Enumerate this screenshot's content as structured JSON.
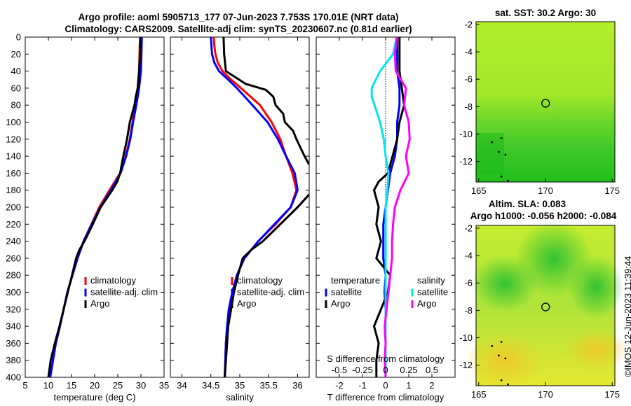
{
  "header": {
    "title_line1": "Argo profile: aoml 5905713_177 07-Jun-2023 7.753S 170.01E (NRT data)",
    "title_line2": "Climatology: CARS2009. Satellite-adj clim: synTS_20230607.nc (0.81d earlier)"
  },
  "colors": {
    "climatology": "#ff0000",
    "satellite": "#0000ff",
    "argo": "#000000",
    "cyan": "#00e5ee",
    "magenta": "#ff00ff"
  },
  "chart_data": [
    {
      "type": "line",
      "id": "temperature-profile",
      "xlabel": "temperature (deg C)",
      "ylabel": "",
      "xlim": [
        5,
        35
      ],
      "ylim": [
        400,
        0
      ],
      "xticks": [
        5,
        10,
        15,
        20,
        25,
        30,
        35
      ],
      "yticks": [
        0,
        20,
        40,
        60,
        80,
        100,
        120,
        140,
        160,
        180,
        200,
        220,
        240,
        260,
        280,
        300,
        320,
        340,
        360,
        380,
        400
      ],
      "legend": [
        "climatology",
        "satellite-adj. clim",
        "Argo"
      ],
      "series": [
        {
          "name": "climatology",
          "color": "#ff0000",
          "depth": [
            0,
            20,
            40,
            60,
            80,
            100,
            120,
            140,
            160,
            180,
            200,
            220,
            240,
            260,
            280,
            300,
            320,
            340,
            360,
            380,
            400
          ],
          "values": [
            29.8,
            29.7,
            29.6,
            29.3,
            28.8,
            28.2,
            27.6,
            26.7,
            25.5,
            23.2,
            21.0,
            19.3,
            17.6,
            16.3,
            15.2,
            14.1,
            13.3,
            12.5,
            11.6,
            11.0,
            10.4
          ]
        },
        {
          "name": "satellite-adj. clim",
          "color": "#0000ff",
          "depth": [
            0,
            20,
            40,
            60,
            80,
            100,
            120,
            140,
            160,
            180,
            200,
            220,
            240,
            260,
            280,
            300,
            320,
            340,
            360,
            380,
            400
          ],
          "values": [
            30.2,
            30.1,
            30.0,
            29.6,
            29.0,
            28.3,
            27.7,
            26.8,
            25.6,
            23.5,
            21.2,
            19.4,
            17.6,
            16.3,
            15.2,
            14.1,
            13.3,
            12.5,
            11.6,
            11.0,
            10.4
          ]
        },
        {
          "name": "Argo",
          "color": "#000000",
          "depth": [
            0,
            20,
            40,
            60,
            70,
            80,
            100,
            120,
            140,
            160,
            170,
            180,
            200,
            220,
            240,
            250,
            260,
            280,
            300,
            320,
            340,
            360,
            380,
            400
          ],
          "values": [
            29.9,
            29.8,
            29.6,
            29.3,
            28.9,
            28.6,
            27.6,
            27.0,
            26.2,
            25.5,
            24.9,
            23.8,
            21.3,
            19.6,
            17.8,
            16.7,
            16.0,
            15.1,
            14.2,
            13.3,
            12.4,
            11.4,
            10.5,
            10.0
          ]
        }
      ]
    },
    {
      "type": "line",
      "id": "salinity-profile",
      "xlabel": "salinity",
      "xlim": [
        33.8,
        36.2
      ],
      "ylim": [
        400,
        0
      ],
      "xticks": [
        34,
        34.5,
        35,
        35.5,
        36
      ],
      "legend": [
        "climatology",
        "satellite-adj. clim",
        "Argo"
      ],
      "series": [
        {
          "name": "climatology",
          "color": "#ff0000",
          "depth": [
            0,
            10,
            20,
            30,
            40,
            50,
            60,
            80,
            100,
            120,
            140,
            160,
            180,
            200,
            220,
            240,
            260,
            280,
            300,
            320,
            340,
            360,
            380,
            400
          ],
          "values": [
            34.55,
            34.56,
            34.58,
            34.62,
            34.7,
            34.85,
            35.02,
            35.35,
            35.55,
            35.7,
            35.8,
            35.91,
            35.98,
            35.88,
            35.62,
            35.32,
            35.08,
            34.95,
            34.88,
            34.82,
            34.78,
            34.76,
            34.75,
            34.74
          ]
        },
        {
          "name": "satellite-adj. clim",
          "color": "#0000ff",
          "depth": [
            0,
            20,
            30,
            40,
            50,
            60,
            80,
            100,
            120,
            140,
            160,
            180,
            200,
            220,
            240,
            260,
            280,
            300,
            320,
            340,
            360,
            380,
            400
          ],
          "values": [
            34.5,
            34.52,
            34.56,
            34.64,
            34.8,
            34.95,
            35.22,
            35.48,
            35.66,
            35.8,
            35.95,
            36.0,
            35.88,
            35.6,
            35.32,
            35.08,
            34.95,
            34.87,
            34.81,
            34.78,
            34.76,
            34.75,
            34.74
          ]
        },
        {
          "name": "Argo",
          "color": "#000000",
          "depth": [
            0,
            20,
            40,
            55,
            62,
            70,
            80,
            90,
            100,
            110,
            120,
            130,
            140,
            150
          ],
          "values": [
            34.72,
            34.73,
            34.76,
            35.1,
            35.45,
            35.58,
            35.62,
            35.75,
            35.78,
            35.92,
            35.98,
            36.05,
            36.12,
            36.2
          ]
        },
        {
          "name": "Argo-deep",
          "color": "#000000",
          "depth": [
            185,
            200,
            220,
            240,
            250,
            260,
            280,
            300,
            320,
            340,
            360,
            380,
            400
          ],
          "values": [
            36.2,
            36.0,
            35.7,
            35.4,
            35.2,
            35.05,
            34.97,
            34.9,
            34.85,
            34.8,
            34.78,
            34.76,
            34.74
          ]
        }
      ]
    },
    {
      "type": "line",
      "id": "difference-profile",
      "xlabel": "T difference from climatology",
      "top_xlabel": "S difference from climatology",
      "xlim": [
        -3,
        3
      ],
      "ylim": [
        400,
        0
      ],
      "xticks": [
        -2,
        -1,
        0,
        1,
        2
      ],
      "sticks": [
        "-0.5",
        "-0.25",
        "0",
        "0.25",
        "0.5"
      ],
      "legend_temperature": [
        "temperature",
        "satellite",
        "Argo"
      ],
      "legend_salinity": [
        "salinity",
        "satellite",
        "Argo"
      ],
      "series": [
        {
          "name": "temperature satellite",
          "color": "#0000ff",
          "depth": [
            0,
            20,
            40,
            60,
            80,
            100,
            120,
            140,
            160,
            180,
            200,
            220,
            240,
            260,
            280,
            300,
            320,
            340,
            360,
            380,
            400
          ],
          "values": [
            0.5,
            0.5,
            0.5,
            0.6,
            0.6,
            0.5,
            0.5,
            0.4,
            0.2,
            0.1,
            0.0,
            -0.1,
            -0.1,
            -0.1,
            0,
            -0.05,
            0,
            0,
            0,
            0,
            0
          ]
        },
        {
          "name": "temperature Argo",
          "color": "#000000",
          "depth": [
            0,
            20,
            40,
            60,
            80,
            100,
            120,
            140,
            160,
            170,
            180,
            200,
            220,
            240,
            260,
            280,
            300,
            320,
            340,
            360,
            380,
            400
          ],
          "values": [
            0.6,
            0.6,
            0.6,
            0.7,
            0.8,
            0.6,
            0.5,
            0.3,
            0.1,
            -0.3,
            -0.5,
            -0.3,
            -0.4,
            -0.2,
            -0.4,
            0.2,
            0.1,
            -0.2,
            -0.5,
            -0.3,
            -0.4,
            -0.4
          ]
        },
        {
          "name": "salinity satellite",
          "color": "#00e5ee",
          "depth": [
            0,
            20,
            40,
            60,
            70,
            80,
            100,
            120,
            140,
            160,
            180,
            200,
            220,
            240,
            260,
            280,
            300,
            320,
            340,
            360,
            380,
            400
          ],
          "values": [
            0.12,
            0.08,
            -0.06,
            -0.15,
            -0.15,
            -0.12,
            -0.06,
            -0.02,
            0.0,
            0.03,
            0.02,
            0.0,
            0.0,
            0.0,
            0.0,
            0.0,
            0.0,
            0.0,
            0.0,
            0.0,
            0.0,
            0.0
          ]
        },
        {
          "name": "salinity Argo",
          "color": "#ff00ff",
          "depth": [
            0,
            20,
            40,
            60,
            80,
            100,
            120,
            140,
            160,
            180,
            200,
            220,
            240,
            260,
            280,
            300,
            320,
            340,
            360,
            380,
            400
          ],
          "values": [
            0.12,
            0.1,
            0.11,
            0.22,
            0.2,
            0.25,
            0.26,
            0.22,
            0.25,
            0.16,
            0.1,
            0.08,
            0.07,
            0.07,
            0.05,
            0.03,
            0.01,
            -0.01,
            0.0,
            -0.01,
            0.0
          ]
        }
      ]
    },
    {
      "type": "heatmap",
      "id": "sst-map",
      "title": "sat. SST: 30.2 Argo: 30",
      "xlim": [
        164.8,
        175.2
      ],
      "ylim": [
        -13.5,
        -1.8
      ],
      "xticks": [
        165,
        170,
        175
      ],
      "yticks": [
        -2,
        -4,
        -6,
        -8,
        -10,
        -12
      ],
      "marker": {
        "lon": 170.01,
        "lat": -7.753
      }
    },
    {
      "type": "heatmap",
      "id": "sla-map",
      "title_line1": "Altim. SLA: 0.083",
      "title_line2": "Argo h1000: -0.056 h2000: -0.084",
      "xlim": [
        164.8,
        175.2
      ],
      "ylim": [
        -13.5,
        -1.8
      ],
      "xticks": [
        165,
        170,
        175
      ],
      "yticks": [
        -2,
        -4,
        -6,
        -8,
        -10,
        -12
      ],
      "marker": {
        "lon": 170.01,
        "lat": -7.753
      }
    }
  ],
  "footer": {
    "stamp": "©IMOS 12-Jun-2023 11:39:44"
  }
}
